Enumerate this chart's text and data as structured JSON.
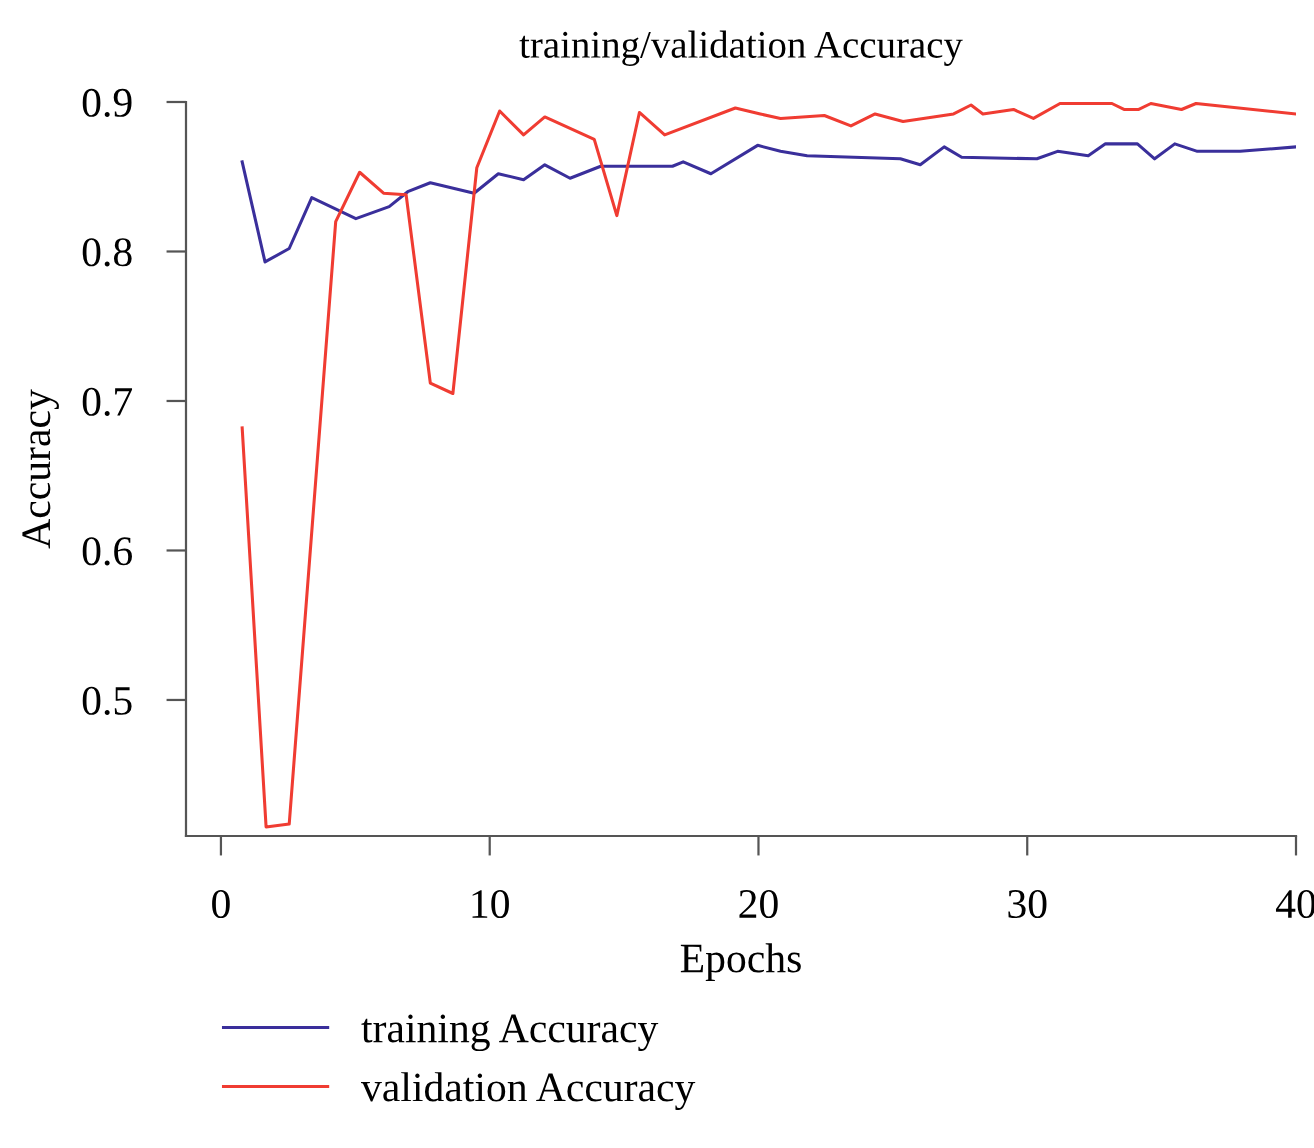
{
  "chart_data": {
    "type": "line",
    "title": "training/validation Accuracy",
    "xlabel": "Epochs",
    "ylabel": "Accuracy",
    "xlim": [
      -1.3,
      40
    ],
    "xticks": [
      0,
      10,
      20,
      30,
      40
    ],
    "ylim": [
      0.409,
      0.9
    ],
    "yticks": [
      0.5,
      0.6,
      0.7,
      0.8,
      0.9
    ],
    "grid": false,
    "legend": "bottom left",
    "marker": "none",
    "line_style": "solid",
    "series": [
      {
        "name": "training Accuracy",
        "color": "#3a2f9b",
        "x": [
          0.79,
          1.64,
          2.54,
          3.38,
          5.02,
          6.26,
          6.95,
          7.79,
          9.42,
          10.32,
          11.26,
          12.05,
          12.99,
          14.13,
          16.8,
          17.2,
          18.23,
          19.97,
          20.82,
          21.81,
          25.28,
          26.02,
          26.91,
          27.56,
          30.36,
          31.13,
          32.27,
          32.91,
          34.1,
          34.74,
          35.49,
          36.33,
          37.92,
          40
        ],
        "values": [
          0.86,
          0.793,
          0.802,
          0.836,
          0.822,
          0.83,
          0.84,
          0.846,
          0.839,
          0.852,
          0.848,
          0.858,
          0.849,
          0.857,
          0.857,
          0.86,
          0.852,
          0.871,
          0.867,
          0.864,
          0.862,
          0.858,
          0.87,
          0.863,
          0.862,
          0.867,
          0.864,
          0.872,
          0.872,
          0.862,
          0.872,
          0.867,
          0.867,
          0.87
        ]
      },
      {
        "name": "validation Accuracy",
        "color": "#f03c32",
        "x": [
          0.79,
          1.68,
          2.54,
          4.27,
          5.16,
          6.05,
          6.89,
          7.79,
          8.63,
          9.52,
          10.37,
          11.26,
          12.05,
          13.89,
          14.73,
          15.57,
          16.51,
          19.14,
          20.07,
          20.82,
          22.45,
          23.44,
          24.34,
          25.38,
          27.26,
          27.91,
          28.35,
          29.49,
          30.23,
          31.22,
          33.15,
          33.6,
          34.15,
          34.6,
          35.74,
          36.28,
          40
        ],
        "values": [
          0.682,
          0.415,
          0.417,
          0.82,
          0.853,
          0.839,
          0.838,
          0.712,
          0.705,
          0.856,
          0.894,
          0.878,
          0.89,
          0.875,
          0.824,
          0.893,
          0.878,
          0.896,
          0.892,
          0.889,
          0.891,
          0.884,
          0.892,
          0.887,
          0.892,
          0.898,
          0.892,
          0.895,
          0.889,
          0.899,
          0.899,
          0.895,
          0.895,
          0.899,
          0.895,
          0.899,
          0.892
        ]
      }
    ]
  }
}
